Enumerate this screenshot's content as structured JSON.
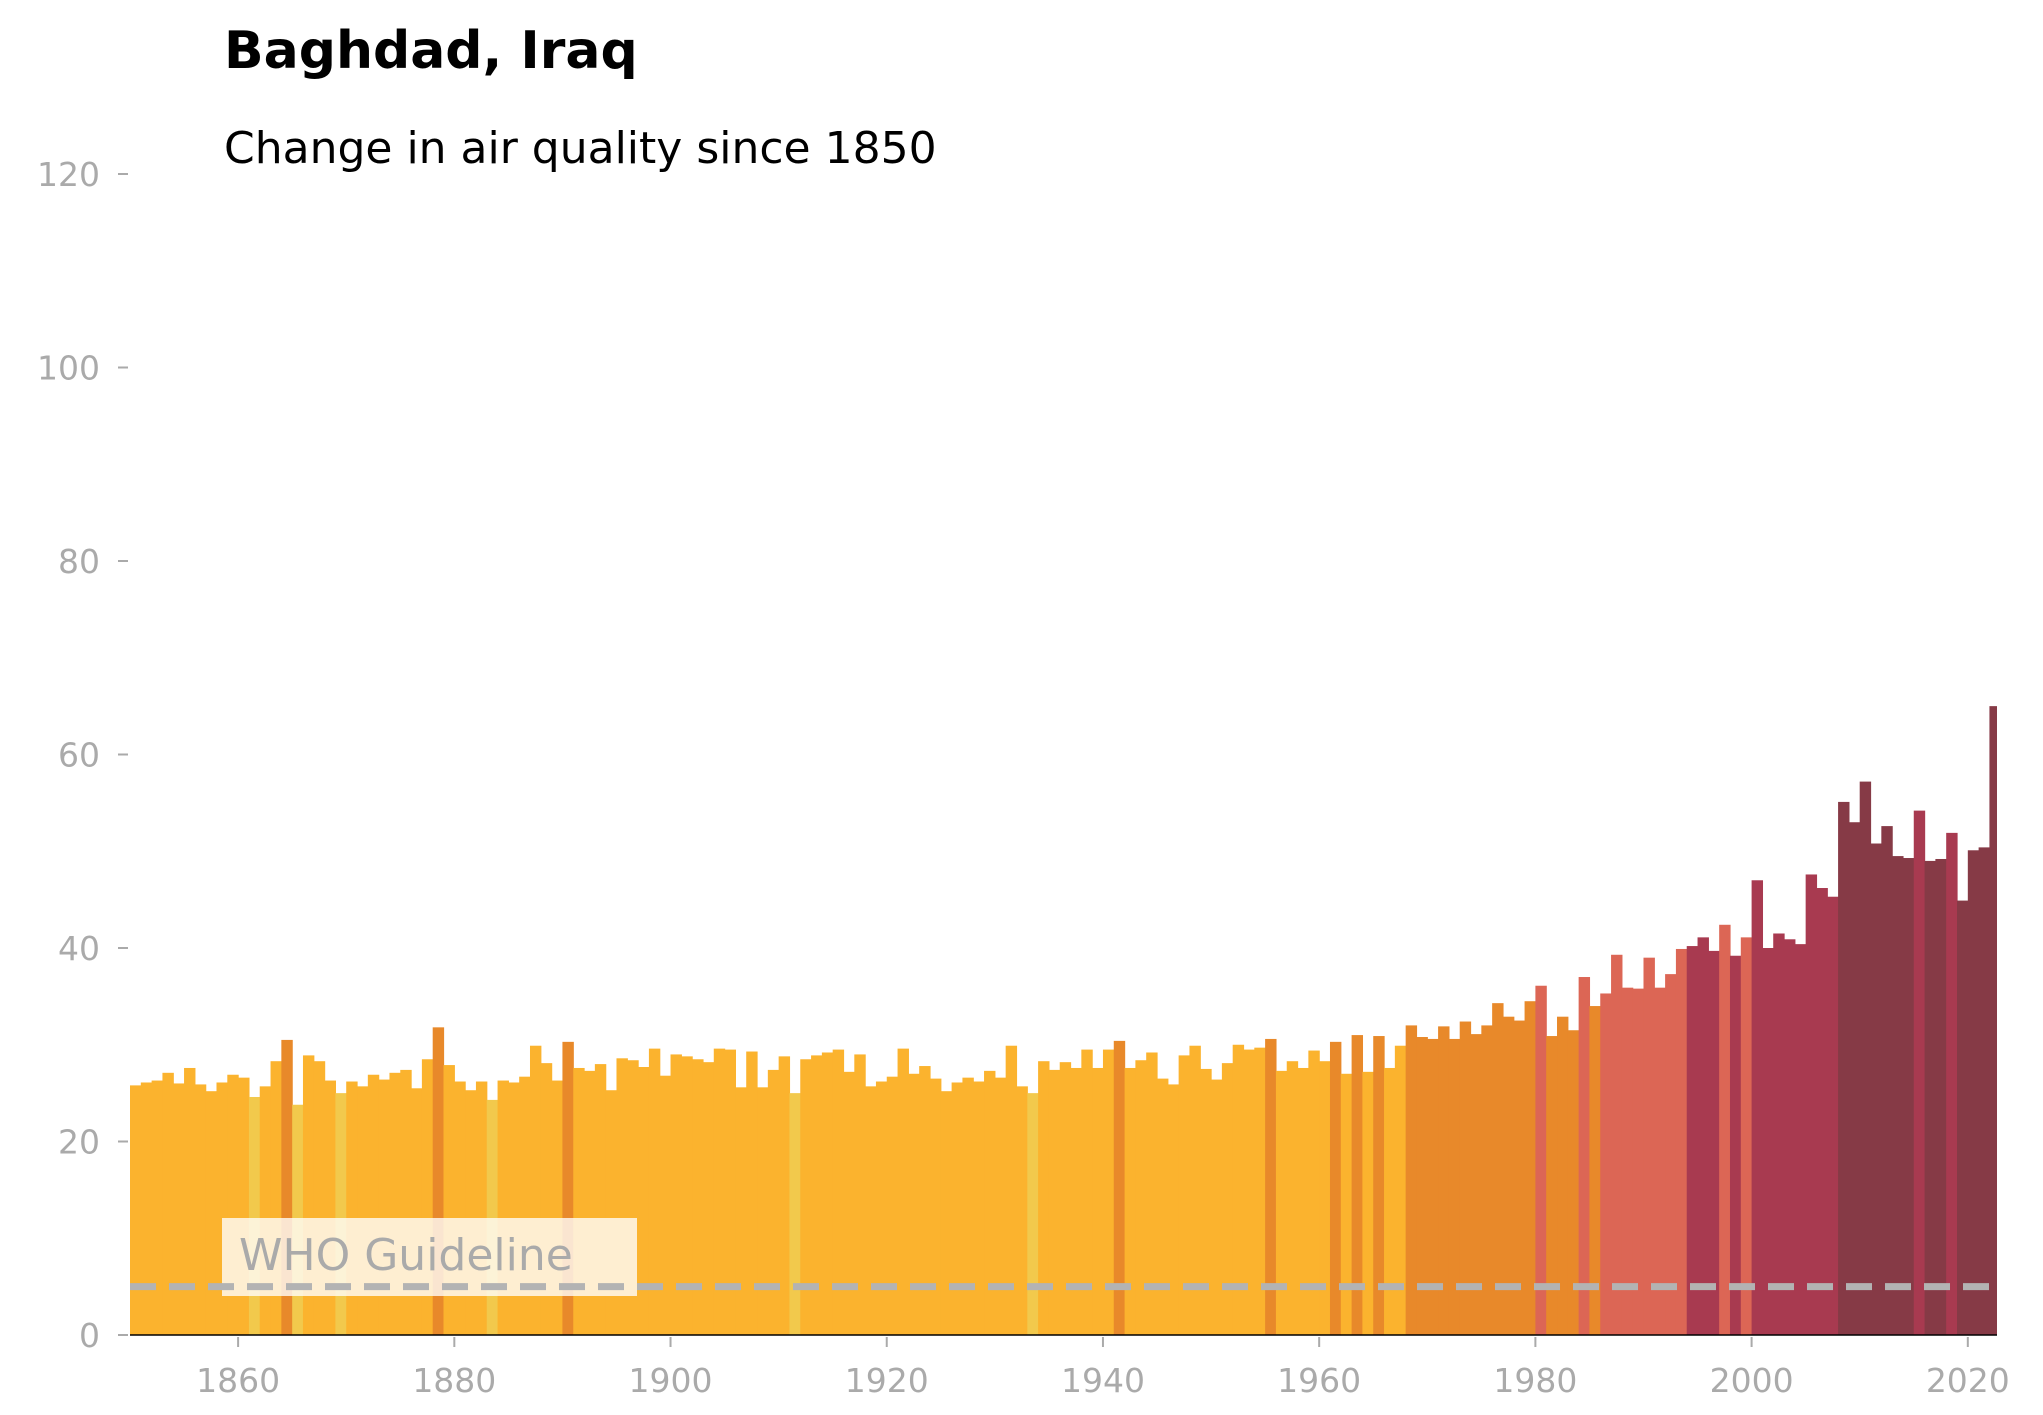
{
  "chart_data": {
    "type": "bar",
    "title": "Baghdad, Iraq",
    "subtitle": "Change in air quality since 1850",
    "xlabel": "",
    "ylabel": "",
    "xlim": [
      1850,
      2022
    ],
    "ylim": [
      0,
      120
    ],
    "x_ticks": [
      "1860",
      "1880",
      "1900",
      "1920",
      "1940",
      "1960",
      "1980",
      "2000",
      "2020"
    ],
    "y_ticks": [
      "0",
      "20",
      "40",
      "60",
      "80",
      "100",
      "120"
    ],
    "grid": false,
    "reference_line": {
      "label": "WHO Guideline",
      "value": 5,
      "style": "dashed",
      "color": "#b3b3b3"
    },
    "colors": {
      "c0": "#f2c94c",
      "c1": "#fbb32e",
      "c2": "#e8892a",
      "c3": "#dc6655",
      "c4": "#a83a50",
      "c5": "#863a46"
    },
    "years": [
      1850,
      1851,
      1852,
      1853,
      1854,
      1855,
      1856,
      1857,
      1858,
      1859,
      1860,
      1861,
      1862,
      1863,
      1864,
      1865,
      1866,
      1867,
      1868,
      1869,
      1870,
      1871,
      1872,
      1873,
      1874,
      1875,
      1876,
      1877,
      1878,
      1879,
      1880,
      1881,
      1882,
      1883,
      1884,
      1885,
      1886,
      1887,
      1888,
      1889,
      1890,
      1891,
      1892,
      1893,
      1894,
      1895,
      1896,
      1897,
      1898,
      1899,
      1900,
      1901,
      1902,
      1903,
      1904,
      1905,
      1906,
      1907,
      1908,
      1909,
      1910,
      1911,
      1912,
      1913,
      1914,
      1915,
      1916,
      1917,
      1918,
      1919,
      1920,
      1921,
      1922,
      1923,
      1924,
      1925,
      1926,
      1927,
      1928,
      1929,
      1930,
      1931,
      1932,
      1933,
      1934,
      1935,
      1936,
      1937,
      1938,
      1939,
      1940,
      1941,
      1942,
      1943,
      1944,
      1945,
      1946,
      1947,
      1948,
      1949,
      1950,
      1951,
      1952,
      1953,
      1954,
      1955,
      1956,
      1957,
      1958,
      1959,
      1960,
      1961,
      1962,
      1963,
      1964,
      1965,
      1966,
      1967,
      1968,
      1969,
      1970,
      1971,
      1972,
      1973,
      1974,
      1975,
      1976,
      1977,
      1978,
      1979,
      1980,
      1981,
      1982,
      1983,
      1984,
      1985,
      1986,
      1987,
      1988,
      1989,
      1990,
      1991,
      1992,
      1993,
      1994,
      1995,
      1996,
      1997,
      1998,
      1999,
      2000,
      2001,
      2002,
      2003,
      2004,
      2005,
      2006,
      2007,
      2008,
      2009,
      2010,
      2011,
      2012,
      2013,
      2014,
      2015,
      2016,
      2017,
      2018,
      2019,
      2020,
      2021
    ],
    "values": [
      25.8,
      26.1,
      26.3,
      27.1,
      26.0,
      27.6,
      25.9,
      25.2,
      26.1,
      26.9,
      26.6,
      24.6,
      25.7,
      28.3,
      30.5,
      23.8,
      28.9,
      28.3,
      26.3,
      25.0,
      26.2,
      25.7,
      26.9,
      26.4,
      27.1,
      27.4,
      25.5,
      28.5,
      31.8,
      27.9,
      26.2,
      25.3,
      26.2,
      24.3,
      26.3,
      26.1,
      26.7,
      29.9,
      28.1,
      26.3,
      30.3,
      27.6,
      27.3,
      28.0,
      25.3,
      28.6,
      28.4,
      27.7,
      29.6,
      26.8,
      29.0,
      28.8,
      28.5,
      28.2,
      29.6,
      29.5,
      25.6,
      29.3,
      25.6,
      27.4,
      28.8,
      25.0,
      28.5,
      28.9,
      29.2,
      29.5,
      27.2,
      29.0,
      25.7,
      26.2,
      26.7,
      29.6,
      27.0,
      27.8,
      26.5,
      25.2,
      26.1,
      26.6,
      26.2,
      27.3,
      26.6,
      29.9,
      25.7,
      25.0,
      28.3,
      27.4,
      28.2,
      27.6,
      29.5,
      27.6,
      29.5,
      30.4,
      27.6,
      28.4,
      29.2,
      26.5,
      25.9,
      28.9,
      29.9,
      27.5,
      26.4,
      28.1,
      30.0,
      29.5,
      29.7,
      30.6,
      27.3,
      28.3,
      27.6,
      29.4,
      28.3,
      30.3,
      27.0,
      31.0,
      27.2,
      30.9,
      27.6,
      29.9,
      32.0,
      30.8,
      30.6,
      31.9,
      30.6,
      32.4,
      31.1,
      32.0,
      34.3,
      32.9,
      32.5,
      34.5,
      36.1,
      30.9,
      32.9,
      31.5,
      37.0,
      34.0,
      35.3,
      39.3,
      35.9,
      35.8,
      39.0,
      35.9,
      37.3,
      39.9,
      40.2,
      41.1,
      39.7,
      42.4,
      39.2,
      41.1,
      47.0,
      40.0,
      41.5,
      40.9,
      40.4,
      47.6,
      46.2,
      45.3,
      55.1,
      53.0,
      57.2,
      50.8,
      52.6,
      49.5,
      49.3,
      54.2,
      49.0,
      49.2,
      51.9,
      44.9,
      50.1,
      50.4
    ],
    "color_classes": [
      "c1",
      "c1",
      "c1",
      "c1",
      "c1",
      "c1",
      "c1",
      "c1",
      "c1",
      "c1",
      "c1",
      "c0",
      "c1",
      "c1",
      "c2",
      "c0",
      "c1",
      "c1",
      "c1",
      "c0",
      "c1",
      "c1",
      "c1",
      "c1",
      "c1",
      "c1",
      "c1",
      "c1",
      "c2",
      "c1",
      "c1",
      "c1",
      "c1",
      "c0",
      "c1",
      "c1",
      "c1",
      "c1",
      "c1",
      "c1",
      "c2",
      "c1",
      "c1",
      "c1",
      "c1",
      "c1",
      "c1",
      "c1",
      "c1",
      "c1",
      "c1",
      "c1",
      "c1",
      "c1",
      "c1",
      "c1",
      "c1",
      "c1",
      "c1",
      "c1",
      "c1",
      "c0",
      "c1",
      "c1",
      "c1",
      "c1",
      "c1",
      "c1",
      "c1",
      "c1",
      "c1",
      "c1",
      "c1",
      "c1",
      "c1",
      "c1",
      "c1",
      "c1",
      "c1",
      "c1",
      "c1",
      "c1",
      "c1",
      "c0",
      "c1",
      "c1",
      "c1",
      "c1",
      "c1",
      "c1",
      "c1",
      "c2",
      "c1",
      "c1",
      "c1",
      "c1",
      "c1",
      "c1",
      "c1",
      "c1",
      "c1",
      "c1",
      "c1",
      "c1",
      "c1",
      "c2",
      "c1",
      "c1",
      "c1",
      "c1",
      "c1",
      "c2",
      "c1",
      "c2",
      "c1",
      "c2",
      "c1",
      "c1",
      "c2",
      "c2",
      "c2",
      "c2",
      "c2",
      "c2",
      "c2",
      "c2",
      "c2",
      "c2",
      "c2",
      "c2",
      "c3",
      "c2",
      "c2",
      "c2",
      "c3",
      "c2",
      "c3",
      "c3",
      "c3",
      "c3",
      "c3",
      "c3",
      "c3",
      "c3",
      "c4",
      "c4",
      "c4",
      "c3",
      "c4",
      "c3",
      "c4",
      "c4",
      "c4",
      "c4",
      "c4",
      "c4",
      "c4",
      "c4",
      "c5",
      "c5",
      "c5",
      "c5",
      "c5",
      "c5",
      "c5",
      "c4",
      "c5",
      "c5",
      "c4",
      "c5",
      "c5",
      "c5"
    ],
    "last_bar": {
      "year": 2022,
      "value": 65.0,
      "color": "#863a46"
    }
  }
}
